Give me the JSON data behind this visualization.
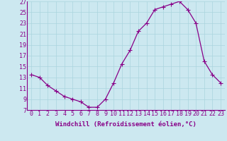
{
  "x": [
    0,
    1,
    2,
    3,
    4,
    5,
    6,
    7,
    8,
    9,
    10,
    11,
    12,
    13,
    14,
    15,
    16,
    17,
    18,
    19,
    20,
    21,
    22,
    23
  ],
  "y": [
    13.5,
    13.0,
    11.5,
    10.5,
    9.5,
    9.0,
    8.5,
    7.5,
    7.5,
    9.0,
    12.0,
    15.5,
    18.0,
    21.5,
    23.0,
    25.5,
    26.0,
    26.5,
    27.0,
    25.5,
    23.0,
    16.0,
    13.5,
    12.0
  ],
  "line_color": "#880088",
  "marker": "+",
  "marker_size": 4,
  "bg_color": "#cce8f0",
  "grid_color": "#aad4de",
  "xlabel": "Windchill (Refroidissement éolien,°C)",
  "ylim": [
    7,
    27
  ],
  "xlim": [
    -0.5,
    23.5
  ],
  "yticks": [
    7,
    9,
    11,
    13,
    15,
    17,
    19,
    21,
    23,
    25,
    27
  ],
  "xticks": [
    0,
    1,
    2,
    3,
    4,
    5,
    6,
    7,
    8,
    9,
    10,
    11,
    12,
    13,
    14,
    15,
    16,
    17,
    18,
    19,
    20,
    21,
    22,
    23
  ],
  "xlabel_fontsize": 6.5,
  "tick_fontsize": 6.0,
  "linewidth": 0.9,
  "marker_linewidth": 0.8
}
